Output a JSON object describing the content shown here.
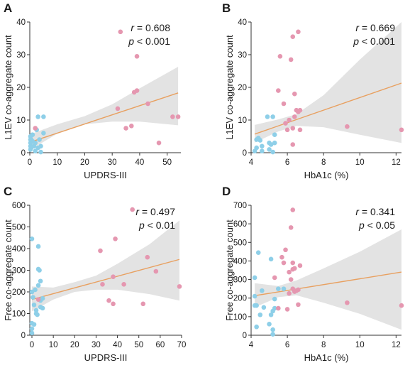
{
  "colors": {
    "blue": "#8ecfe8",
    "pink": "#e597b0",
    "line": "#e8a060",
    "band": "#e3e3e3",
    "axis": "#333333"
  },
  "chart_data": [
    {
      "type": "scatter",
      "panel": "A",
      "xlabel": "UPDRS-III",
      "ylabel": "L1EV co-aggregate count",
      "xlim": [
        0,
        55
      ],
      "ylim": [
        0,
        40
      ],
      "xticks": [
        0,
        10,
        20,
        30,
        40,
        50
      ],
      "yticks": [
        0,
        10,
        20,
        30,
        40
      ],
      "stat_r_label": "r",
      "stat_r_value": " = 0.608",
      "stat_p_label": "p",
      "stat_p_value": " < 0.001",
      "fit": {
        "x": [
          0,
          54
        ],
        "y": [
          3.2,
          18.3
        ]
      },
      "band": {
        "x": [
          0,
          10,
          20,
          30,
          40,
          54
        ],
        "lower": [
          0.8,
          5.8,
          8.7,
          9.5,
          9.5,
          8.4
        ],
        "upper": [
          5.6,
          8.7,
          11.2,
          14.8,
          19.7,
          26.3
        ]
      },
      "series": [
        {
          "color_key": "blue",
          "points": [
            [
              0,
              1
            ],
            [
              0,
              2
            ],
            [
              0,
              3
            ],
            [
              0,
              4
            ],
            [
              0,
              5
            ],
            [
              0.5,
              1.5
            ],
            [
              0.5,
              4
            ],
            [
              1,
              3.5
            ],
            [
              1,
              5.5
            ],
            [
              1.5,
              2
            ],
            [
              2,
              0.5
            ],
            [
              2,
              3
            ],
            [
              2.5,
              7
            ],
            [
              3,
              11
            ],
            [
              3,
              1.5
            ],
            [
              3.5,
              4
            ],
            [
              4,
              0.2
            ],
            [
              4,
              2
            ],
            [
              5,
              6
            ],
            [
              5,
              11
            ]
          ]
        },
        {
          "color_key": "pink",
          "points": [
            [
              2,
              7.5
            ],
            [
              32,
              13.5
            ],
            [
              33,
              37
            ],
            [
              35,
              7.5
            ],
            [
              37,
              8.2
            ],
            [
              38,
              18.5
            ],
            [
              39,
              29.5
            ],
            [
              39,
              19
            ],
            [
              43,
              15
            ],
            [
              47,
              3
            ],
            [
              52,
              11
            ],
            [
              54,
              11
            ]
          ]
        }
      ]
    },
    {
      "type": "scatter",
      "panel": "B",
      "xlabel": "HbA1c (%)",
      "ylabel": "L1EV co-aggregate count",
      "xlim": [
        4,
        12.3
      ],
      "ylim": [
        0,
        40
      ],
      "xticks": [
        4,
        6,
        8,
        10,
        12
      ],
      "yticks": [
        0,
        10,
        20,
        30,
        40
      ],
      "stat_r_label": "r",
      "stat_r_value": " = 0.669",
      "stat_p_label": "p",
      "stat_p_value": " < 0.001",
      "fit": {
        "x": [
          4.2,
          12.3
        ],
        "y": [
          5.7,
          21.3
        ]
      },
      "band": {
        "x": [
          4.2,
          5.5,
          6.5,
          8,
          10,
          12.3
        ],
        "lower": [
          3.1,
          6.5,
          8.2,
          7.8,
          5.5,
          3.0
        ],
        "upper": [
          8.5,
          10.2,
          11.8,
          17.6,
          28.5,
          40.0
        ]
      },
      "series": [
        {
          "color_key": "blue",
          "points": [
            [
              4.2,
              0.5
            ],
            [
              4.3,
              1.5
            ],
            [
              4.3,
              4
            ],
            [
              4.4,
              4.5
            ],
            [
              4.5,
              3.8
            ],
            [
              4.6,
              2
            ],
            [
              4.6,
              0.5
            ],
            [
              5,
              1
            ],
            [
              5,
              3
            ],
            [
              5.1,
              2.5
            ],
            [
              5.2,
              0.2
            ],
            [
              5.2,
              11
            ],
            [
              5.3,
              3
            ],
            [
              5.3,
              5.5
            ],
            [
              4.9,
              11
            ]
          ]
        },
        {
          "color_key": "pink",
          "points": [
            [
              5.5,
              19
            ],
            [
              5.6,
              29.5
            ],
            [
              5.8,
              15
            ],
            [
              5.9,
              9
            ],
            [
              6,
              7
            ],
            [
              6.1,
              10
            ],
            [
              6.2,
              28.5
            ],
            [
              6.3,
              35.5
            ],
            [
              6.3,
              2.5
            ],
            [
              6.3,
              7.5
            ],
            [
              6.4,
              11
            ],
            [
              6.4,
              18
            ],
            [
              6.5,
              13
            ],
            [
              6.6,
              12.5
            ],
            [
              6.7,
              7
            ],
            [
              6.7,
              13
            ],
            [
              6.6,
              37
            ],
            [
              9.3,
              8
            ],
            [
              12.3,
              7
            ]
          ]
        }
      ]
    },
    {
      "type": "scatter",
      "panel": "C",
      "xlabel": "UPDRS-III",
      "ylabel": "Free co-aggregate count",
      "xlim": [
        -1,
        70
      ],
      "ylim": [
        0,
        600
      ],
      "xticks": [
        0,
        10,
        20,
        30,
        40,
        50,
        60,
        70
      ],
      "yticks": [
        0,
        100,
        200,
        300,
        400,
        500,
        600
      ],
      "stat_r_label": "r",
      "stat_r_value": " = 0.497",
      "stat_p_label": "p",
      "stat_p_value": " < 0.01",
      "fit": {
        "x": [
          0,
          69
        ],
        "y": [
          165,
          350
        ]
      },
      "band": {
        "x": [
          0,
          10,
          20,
          30,
          40,
          55,
          69
        ],
        "lower": [
          110,
          165,
          200,
          210,
          210,
          190,
          160
        ],
        "upper": [
          225,
          220,
          245,
          275,
          330,
          420,
          530
        ]
      },
      "series": [
        {
          "color_key": "blue",
          "points": [
            [
              0,
              445
            ],
            [
              0,
              200
            ],
            [
              0,
              55
            ],
            [
              0,
              30
            ],
            [
              0,
              10
            ],
            [
              0.5,
              175
            ],
            [
              1,
              140
            ],
            [
              1,
              50
            ],
            [
              1.5,
              210
            ],
            [
              2,
              115
            ],
            [
              2,
              100
            ],
            [
              2.5,
              95
            ],
            [
              3,
              410
            ],
            [
              3,
              305
            ],
            [
              3,
              230
            ],
            [
              3.5,
              300
            ],
            [
              4,
              160
            ],
            [
              4,
              130
            ],
            [
              4,
              250
            ],
            [
              5,
              170
            ],
            [
              5,
              125
            ]
          ]
        },
        {
          "color_key": "pink",
          "points": [
            [
              3,
              165
            ],
            [
              32,
              390
            ],
            [
              33,
              235
            ],
            [
              36,
              160
            ],
            [
              38,
              145
            ],
            [
              38,
              270
            ],
            [
              39,
              445
            ],
            [
              43,
              235
            ],
            [
              47,
              580
            ],
            [
              52,
              145
            ],
            [
              54,
              360
            ],
            [
              58,
              295
            ],
            [
              69,
              225
            ]
          ]
        }
      ]
    },
    {
      "type": "scatter",
      "panel": "D",
      "xlabel": "HbA1c (%)",
      "ylabel": "Free co-aggregate count",
      "xlim": [
        4,
        12.3
      ],
      "ylim": [
        0,
        700
      ],
      "xticks": [
        4,
        6,
        8,
        10,
        12
      ],
      "yticks": [
        0,
        100,
        200,
        300,
        400,
        500,
        600,
        700
      ],
      "stat_r_label": "r",
      "stat_r_value": " = 0.341",
      "stat_p_label": "p",
      "stat_p_value": " < 0.05",
      "fit": {
        "x": [
          4.2,
          12.3
        ],
        "y": [
          213,
          340
        ]
      },
      "band": {
        "x": [
          4.2,
          5.5,
          6.5,
          8,
          10,
          12.3
        ],
        "lower": [
          150,
          205,
          215,
          175,
          115,
          30
        ],
        "upper": [
          280,
          265,
          295,
          360,
          450,
          570
        ]
      },
      "series": [
        {
          "color_key": "blue",
          "points": [
            [
              4.2,
              310
            ],
            [
              4.2,
              210
            ],
            [
              4.2,
              160
            ],
            [
              4.3,
              160
            ],
            [
              4.3,
              45
            ],
            [
              4.4,
              445
            ],
            [
              4.5,
              110
            ],
            [
              4.6,
              240
            ],
            [
              4.7,
              150
            ],
            [
              5,
              60
            ],
            [
              5.1,
              410
            ],
            [
              5.1,
              110
            ],
            [
              5.2,
              130
            ],
            [
              5.2,
              30
            ],
            [
              5.2,
              5
            ],
            [
              5.3,
              145
            ],
            [
              5.5,
              250
            ],
            [
              5.3,
              195
            ],
            [
              5.8,
              250
            ]
          ]
        },
        {
          "color_key": "pink",
          "points": [
            [
              5.3,
              310
            ],
            [
              5.5,
              145
            ],
            [
              5.7,
              420
            ],
            [
              5.8,
              390
            ],
            [
              5.9,
              460
            ],
            [
              6,
              140
            ],
            [
              6.1,
              340
            ],
            [
              6.1,
              225
            ],
            [
              6.2,
              580
            ],
            [
              6.2,
              300
            ],
            [
              6.3,
              390
            ],
            [
              6.3,
              675
            ],
            [
              6.3,
              355
            ],
            [
              6.3,
              250
            ],
            [
              6.4,
              360
            ],
            [
              6.4,
              235
            ],
            [
              6.5,
              240
            ],
            [
              6.6,
              245
            ],
            [
              6.6,
              165
            ],
            [
              6.7,
              375
            ],
            [
              9.3,
              175
            ],
            [
              12.3,
              160
            ]
          ]
        }
      ]
    }
  ]
}
